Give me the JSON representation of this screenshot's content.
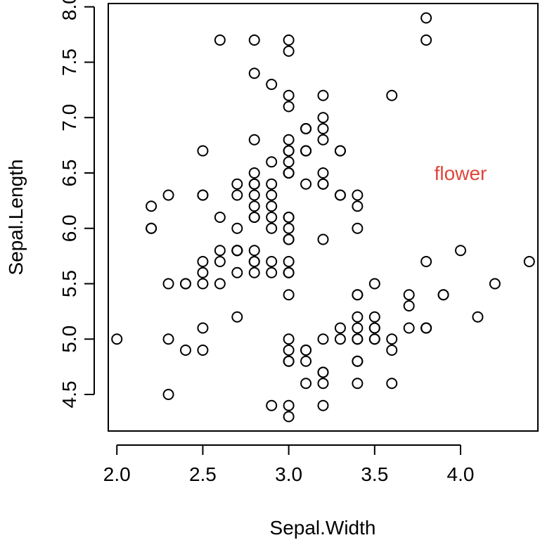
{
  "chart_data": {
    "type": "scatter",
    "title": "",
    "xlabel": "Sepal.Width",
    "ylabel": "Sepal.Length",
    "xlim": [
      1.95,
      4.45
    ],
    "ylim": [
      4.17,
      8.03
    ],
    "x_ticks": [
      2.0,
      2.5,
      3.0,
      3.5,
      4.0
    ],
    "x_tick_labels": [
      "2.0",
      "2.5",
      "3.0",
      "3.5",
      "4.0"
    ],
    "y_ticks": [
      4.5,
      5.0,
      5.5,
      6.0,
      6.5,
      7.0,
      7.5,
      8.0
    ],
    "y_tick_labels": [
      "4.5",
      "5.0",
      "5.5",
      "6.0",
      "6.5",
      "7.0",
      "7.5",
      "8.0"
    ],
    "grid": false,
    "marker": "open-circle",
    "annotation": {
      "text": "flower",
      "x": 4.0,
      "y": 6.5,
      "color": "#e0443a"
    },
    "series": [
      {
        "points": [
          [
            3.5,
            5.1
          ],
          [
            3.0,
            4.9
          ],
          [
            3.2,
            4.7
          ],
          [
            3.1,
            4.6
          ],
          [
            3.6,
            5.0
          ],
          [
            3.9,
            5.4
          ],
          [
            3.4,
            4.6
          ],
          [
            3.4,
            5.0
          ],
          [
            2.9,
            4.4
          ],
          [
            3.1,
            4.9
          ],
          [
            3.7,
            5.4
          ],
          [
            3.4,
            4.8
          ],
          [
            3.0,
            4.8
          ],
          [
            3.0,
            4.3
          ],
          [
            4.0,
            5.8
          ],
          [
            4.4,
            5.7
          ],
          [
            3.9,
            5.4
          ],
          [
            3.5,
            5.1
          ],
          [
            3.8,
            5.7
          ],
          [
            3.8,
            5.1
          ],
          [
            3.4,
            5.4
          ],
          [
            3.7,
            5.1
          ],
          [
            3.6,
            4.6
          ],
          [
            3.3,
            5.1
          ],
          [
            3.4,
            4.8
          ],
          [
            3.0,
            5.0
          ],
          [
            3.4,
            5.0
          ],
          [
            3.5,
            5.2
          ],
          [
            3.4,
            5.2
          ],
          [
            3.2,
            4.7
          ],
          [
            3.1,
            4.8
          ],
          [
            3.4,
            5.4
          ],
          [
            4.1,
            5.2
          ],
          [
            4.2,
            5.5
          ],
          [
            3.1,
            4.9
          ],
          [
            3.2,
            5.0
          ],
          [
            3.5,
            5.5
          ],
          [
            3.6,
            4.9
          ],
          [
            3.0,
            4.4
          ],
          [
            3.4,
            5.1
          ],
          [
            3.5,
            5.0
          ],
          [
            2.3,
            4.5
          ],
          [
            3.2,
            4.4
          ],
          [
            3.5,
            5.0
          ],
          [
            3.8,
            5.1
          ],
          [
            3.0,
            4.8
          ],
          [
            3.8,
            5.1
          ],
          [
            3.2,
            4.6
          ],
          [
            3.7,
            5.3
          ],
          [
            3.3,
            5.0
          ],
          [
            3.2,
            7.0
          ],
          [
            3.2,
            6.4
          ],
          [
            3.1,
            6.9
          ],
          [
            2.3,
            5.5
          ],
          [
            2.8,
            6.5
          ],
          [
            2.8,
            5.7
          ],
          [
            3.3,
            6.3
          ],
          [
            2.4,
            4.9
          ],
          [
            2.9,
            6.6
          ],
          [
            2.7,
            5.2
          ],
          [
            2.0,
            5.0
          ],
          [
            3.0,
            5.9
          ],
          [
            2.2,
            6.0
          ],
          [
            2.9,
            6.1
          ],
          [
            2.9,
            5.6
          ],
          [
            3.1,
            6.7
          ],
          [
            3.0,
            5.6
          ],
          [
            2.7,
            5.8
          ],
          [
            2.2,
            6.2
          ],
          [
            2.5,
            5.6
          ],
          [
            3.2,
            5.9
          ],
          [
            2.8,
            6.1
          ],
          [
            2.5,
            6.3
          ],
          [
            2.8,
            6.1
          ],
          [
            2.9,
            6.4
          ],
          [
            3.0,
            6.6
          ],
          [
            2.8,
            6.8
          ],
          [
            3.0,
            6.7
          ],
          [
            2.9,
            6.0
          ],
          [
            2.6,
            5.7
          ],
          [
            2.4,
            5.5
          ],
          [
            2.4,
            5.5
          ],
          [
            2.7,
            5.8
          ],
          [
            2.7,
            6.0
          ],
          [
            3.0,
            5.4
          ],
          [
            3.4,
            6.0
          ],
          [
            3.1,
            6.7
          ],
          [
            2.3,
            6.3
          ],
          [
            3.0,
            5.6
          ],
          [
            2.5,
            5.5
          ],
          [
            2.6,
            5.5
          ],
          [
            3.0,
            6.1
          ],
          [
            2.6,
            5.8
          ],
          [
            2.3,
            5.0
          ],
          [
            2.7,
            5.6
          ],
          [
            3.0,
            5.7
          ],
          [
            2.9,
            5.7
          ],
          [
            2.9,
            6.2
          ],
          [
            2.5,
            5.1
          ],
          [
            2.8,
            5.7
          ],
          [
            3.3,
            6.3
          ],
          [
            2.7,
            5.8
          ],
          [
            3.0,
            7.1
          ],
          [
            2.9,
            6.3
          ],
          [
            3.0,
            6.5
          ],
          [
            3.0,
            7.6
          ],
          [
            2.5,
            4.9
          ],
          [
            2.9,
            7.3
          ],
          [
            2.5,
            6.7
          ],
          [
            3.6,
            7.2
          ],
          [
            3.2,
            6.5
          ],
          [
            2.7,
            6.4
          ],
          [
            3.0,
            6.8
          ],
          [
            2.5,
            5.7
          ],
          [
            2.8,
            5.8
          ],
          [
            3.2,
            6.4
          ],
          [
            3.0,
            6.5
          ],
          [
            3.8,
            7.7
          ],
          [
            2.6,
            7.7
          ],
          [
            2.2,
            6.0
          ],
          [
            3.2,
            6.9
          ],
          [
            2.8,
            5.6
          ],
          [
            2.8,
            7.7
          ],
          [
            2.7,
            6.3
          ],
          [
            3.3,
            6.7
          ],
          [
            3.2,
            7.2
          ],
          [
            2.8,
            6.2
          ],
          [
            3.0,
            6.1
          ],
          [
            2.8,
            6.4
          ],
          [
            3.0,
            7.2
          ],
          [
            2.8,
            7.4
          ],
          [
            3.8,
            7.9
          ],
          [
            2.8,
            6.4
          ],
          [
            2.8,
            6.3
          ],
          [
            2.6,
            6.1
          ],
          [
            3.0,
            7.7
          ],
          [
            3.4,
            6.3
          ],
          [
            3.1,
            6.4
          ],
          [
            3.0,
            6.0
          ],
          [
            3.1,
            6.9
          ],
          [
            3.1,
            6.7
          ],
          [
            3.1,
            6.9
          ],
          [
            2.7,
            5.8
          ],
          [
            3.2,
            6.8
          ],
          [
            3.3,
            6.7
          ],
          [
            3.0,
            6.7
          ],
          [
            2.5,
            6.3
          ],
          [
            3.0,
            6.5
          ],
          [
            3.4,
            6.2
          ],
          [
            3.0,
            5.9
          ]
        ]
      }
    ]
  }
}
